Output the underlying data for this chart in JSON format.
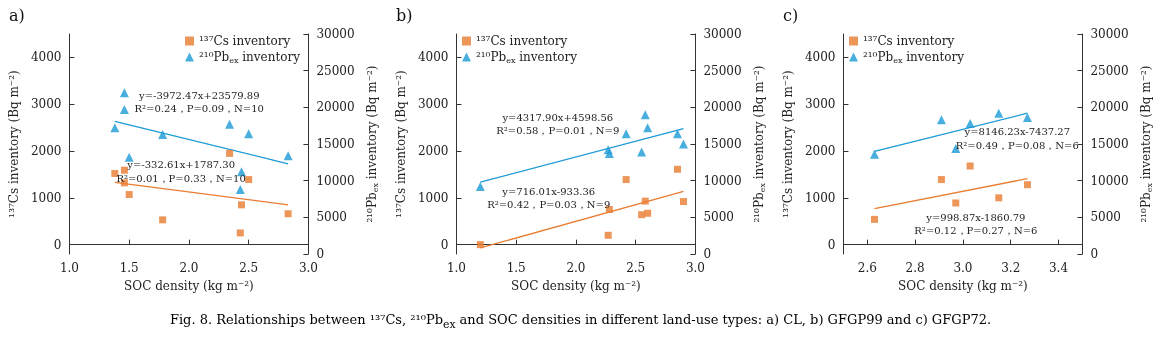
{
  "chart_data": [
    {
      "type": "scatter",
      "title": "a)",
      "xlabel": "SOC density (kg m⁻²)",
      "ylabel": "¹³⁷Cs inventory (Bq m⁻²)",
      "y2label": "²¹⁰Pb$_{ex}$ inventory (Bq m⁻²)",
      "xlim": [
        1.0,
        3.0
      ],
      "xticks": [
        {
          "value": 1,
          "label": "1.0"
        },
        1.5,
        {
          "value": 2,
          "label": "2.0"
        },
        2.5,
        {
          "value": 3,
          "label": "3.0"
        }
      ],
      "ylim": [
        -200,
        4500
      ],
      "yticks": [
        0,
        1000,
        2000,
        3000,
        4000
      ],
      "y2lim": [
        0,
        30000
      ],
      "y2ticks": [
        0,
        5000,
        10000,
        15000,
        20000,
        25000,
        30000
      ],
      "legend": "top right",
      "series": [
        {
          "name": "¹³⁷Cs inventory",
          "type": "scatter",
          "color": "#e97c30",
          "marker": "square",
          "x": [
            1.38,
            1.46,
            1.46,
            1.5,
            1.78,
            2.34,
            2.44,
            2.43,
            2.5,
            2.83
          ],
          "values": [
            1520,
            1590,
            1320,
            1070,
            530,
            1950,
            850,
            250,
            1390,
            660
          ]
        },
        {
          "name": "²¹⁰Pb$_{ex}$ inventory",
          "type": "scatter",
          "axis": "y2",
          "color": "#1a9ad6",
          "marker": "triangle",
          "x": [
            1.38,
            1.46,
            1.46,
            1.5,
            1.78,
            2.34,
            2.5,
            2.44,
            2.43,
            2.83
          ],
          "values": [
            17200,
            22000,
            19700,
            13200,
            16300,
            17700,
            16400,
            11200,
            8800,
            13400
          ]
        },
        {
          "type": "line",
          "color": "#e97c30",
          "marker": "none",
          "x": [
            1.38,
            2.83
          ],
          "values": [
            1330,
            850
          ]
        },
        {
          "type": "line",
          "axis": "y2",
          "color": "#1a9ad6",
          "marker": "none",
          "x": [
            1.38,
            2.83
          ],
          "values": [
            18100,
            12300
          ]
        }
      ],
      "annotations": [
        "y=-3972.47x+23579.89",
        "R²=0.24，P=0.09，N=10",
        "y=-332.61x+1787.30",
        "R²=0.01，P=0.33，N=10",
        "Fig. 8. Relationships between ¹³⁷Cs, ²¹⁰Pb$_{ex}$ and SOC densities in different land-use types: a) CL, b) GFGP99 and c) GFGP72."
      ]
    },
    {
      "type": "scatter",
      "title": "b)",
      "xlabel": "SOC density (kg m⁻²)",
      "ylabel": "¹³⁷Cs inventory (Bq m⁻²)",
      "y2label": "²¹⁰Pb$_{ex}$ inventory (Bq m⁻²)",
      "xlim": [
        1.0,
        3.0
      ],
      "xticks": [
        {
          "value": 1,
          "label": "1.0"
        },
        1.5,
        {
          "value": 2,
          "label": "2.0"
        },
        2.5,
        {
          "value": 3,
          "label": "3.0"
        }
      ],
      "ylim": [
        -200,
        4500
      ],
      "yticks": [
        0,
        1000,
        2000,
        3000,
        4000
      ],
      "y2lim": [
        0,
        30000
      ],
      "y2ticks": [
        0,
        5000,
        10000,
        15000,
        20000,
        25000,
        30000
      ],
      "legend": "top left",
      "series": [
        {
          "name": "¹³⁷Cs inventory",
          "type": "scatter",
          "color": "#e97c30",
          "marker": "square",
          "x": [
            1.2,
            2.27,
            2.28,
            2.42,
            2.55,
            2.58,
            2.6,
            2.85,
            2.9
          ],
          "values": [
            0,
            200,
            750,
            1390,
            640,
            930,
            670,
            1610,
            920
          ]
        },
        {
          "name": "²¹⁰Pb$_{ex}$ inventory",
          "type": "scatter",
          "axis": "y2",
          "color": "#1a9ad6",
          "marker": "triangle",
          "x": [
            1.2,
            2.27,
            2.28,
            2.42,
            2.55,
            2.58,
            2.6,
            2.85,
            2.9
          ],
          "values": [
            9200,
            14200,
            13700,
            16400,
            13900,
            19000,
            17200,
            16400,
            15000
          ]
        },
        {
          "type": "line",
          "color": "#e97c30",
          "marker": "none",
          "x": [
            1.2,
            2.9
          ],
          "values": [
            -70,
            1140
          ]
        },
        {
          "type": "line",
          "axis": "y2",
          "color": "#1a9ad6",
          "marker": "none",
          "x": [
            1.2,
            2.9
          ],
          "values": [
            9800,
            17100
          ]
        }
      ],
      "annotations": [
        "y=4317.90x+4598.56",
        "R²=0.58，P=0.01，N=9",
        "y=716.01x-933.36",
        "R²=0.42，P=0.03，N=9"
      ]
    },
    {
      "type": "scatter",
      "title": "c)",
      "xlabel": "SOC density (kg m⁻²)",
      "ylabel": "¹³⁷Cs inventory (Bq m⁻²)",
      "y2label": "²¹⁰Pb$_{ex}$ inventory (Bq m⁻²)",
      "xlim": [
        2.5,
        3.5
      ],
      "xticks": [
        2.6,
        2.8,
        {
          "value": 3,
          "label": "3.0"
        },
        3.2,
        3.4
      ],
      "ylim": [
        -200,
        4500
      ],
      "yticks": [
        0,
        1000,
        2000,
        3000,
        4000
      ],
      "y2lim": [
        0,
        30000
      ],
      "y2ticks": [
        0,
        5000,
        10000,
        15000,
        20000,
        25000,
        30000
      ],
      "legend": "top left",
      "series": [
        {
          "name": "¹³⁷Cs inventory",
          "type": "scatter",
          "color": "#e97c30",
          "marker": "square",
          "x": [
            2.63,
            2.91,
            2.97,
            3.03,
            3.15,
            3.27
          ],
          "values": [
            540,
            1390,
            890,
            1680,
            1000,
            1280
          ]
        },
        {
          "name": "²¹⁰Pb$_{ex}$ inventory",
          "type": "scatter",
          "axis": "y2",
          "color": "#1a9ad6",
          "marker": "triangle",
          "x": [
            2.63,
            2.91,
            2.97,
            3.03,
            3.15,
            3.27
          ],
          "values": [
            13600,
            18300,
            14400,
            17800,
            19200,
            18600
          ]
        },
        {
          "type": "line",
          "color": "#e97c30",
          "marker": "none",
          "x": [
            2.63,
            3.27
          ],
          "values": [
            770,
            1410
          ]
        },
        {
          "type": "line",
          "axis": "y2",
          "color": "#1a9ad6",
          "marker": "none",
          "x": [
            2.63,
            3.27
          ],
          "values": [
            14000,
            19200
          ]
        }
      ],
      "annotations": [
        "y=8146.23x-7437.27",
        "R²=0.49，P=0.08，N=6",
        "y=998.87x-1860.79",
        "R²=0.12，P=0.27，N=6"
      ]
    }
  ]
}
